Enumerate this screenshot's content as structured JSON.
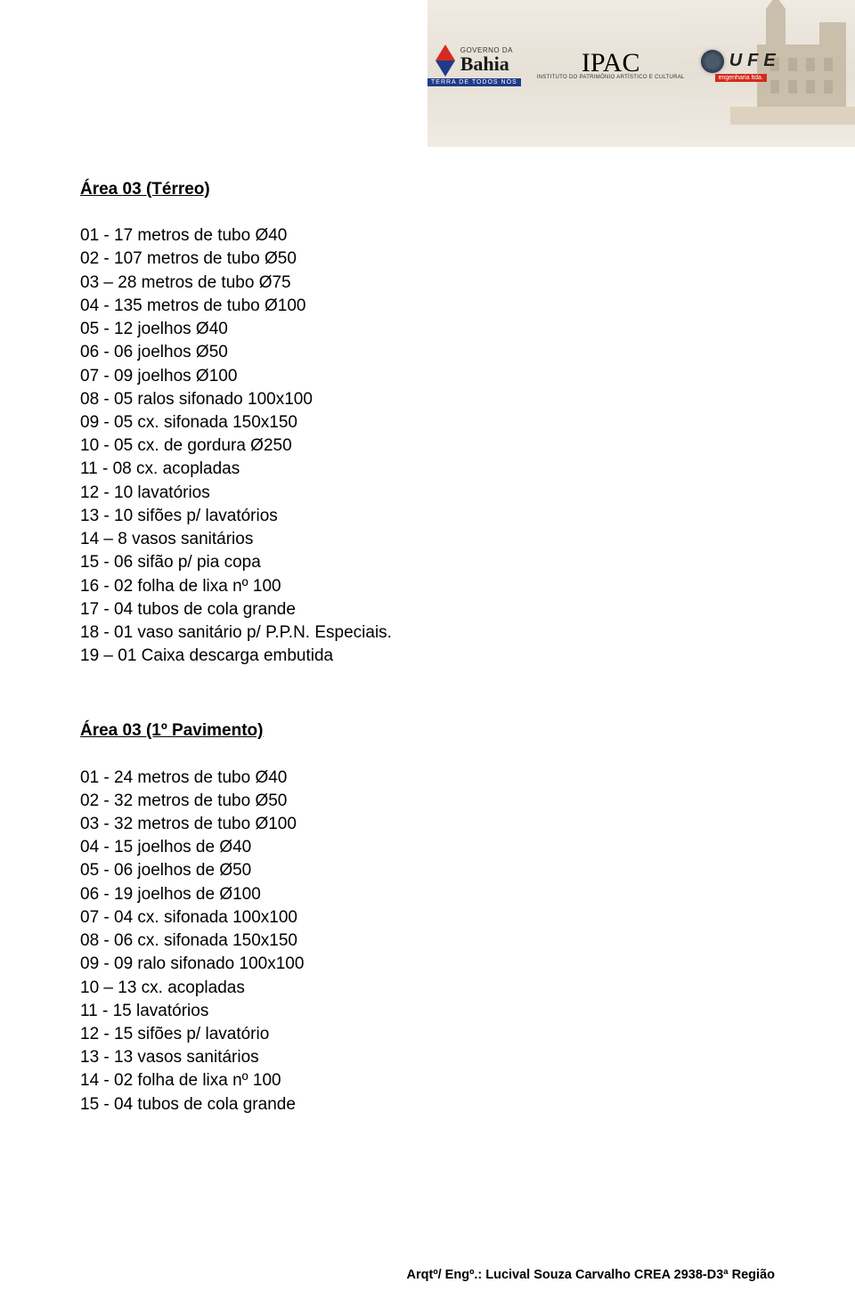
{
  "header": {
    "bahia": {
      "small": "GOVERNO DA",
      "big": "Bahia",
      "tag": "TERRA DE TODOS NÓS"
    },
    "ipac": {
      "big": "IPAC",
      "sub": "INSTITUTO DO PATRIMÔNIO\nARTÍSTICO E CULTURAL"
    },
    "ufe": {
      "big": "UFE",
      "sub": "engenharia  ltda."
    }
  },
  "sections": [
    {
      "heading": "Área 03 (Térreo)",
      "items": [
        "01 - 17 metros de tubo Ø40",
        "02 - 107 metros de tubo Ø50",
        "03 – 28 metros de tubo Ø75",
        "04 - 135 metros de tubo Ø100",
        "05 - 12 joelhos Ø40",
        "06 - 06 joelhos Ø50",
        "07 - 09 joelhos Ø100",
        "08 - 05 ralos sifonado 100x100",
        "09 - 05 cx. sifonada 150x150",
        "10 - 05 cx. de gordura Ø250",
        "11 - 08 cx. acopladas",
        "12 - 10 lavatórios",
        "13 - 10 sifões p/ lavatórios",
        "14 – 8 vasos sanitários",
        "15 - 06 sifão p/ pia copa",
        "16 - 02 folha de lixa nº 100",
        "17 - 04 tubos de cola grande",
        "18 - 01 vaso sanitário p/ P.P.N. Especiais.",
        "19 – 01 Caixa descarga embutida"
      ]
    },
    {
      "heading": "Área 03 (1º Pavimento)",
      "items": [
        "01 - 24 metros de tubo Ø40",
        "02 - 32 metros de tubo Ø50",
        "03 - 32 metros de tubo Ø100",
        "04 - 15 joelhos de Ø40",
        "05 - 06 joelhos de Ø50",
        "06 - 19 joelhos de Ø100",
        "07 - 04 cx. sifonada 100x100",
        "08 - 06 cx. sifonada 150x150",
        "09 - 09 ralo sifonado 100x100",
        "10 – 13 cx. acopladas",
        "11 - 15 lavatórios",
        "12 - 15 sifões p/ lavatório",
        "13 - 13 vasos sanitários",
        "14 - 02 folha de lixa nº 100",
        "15 - 04 tubos de cola grande"
      ]
    }
  ],
  "footer": "Arqtº/ Engº.: Lucival Souza Carvalho  CREA 2938-D3ª Região"
}
